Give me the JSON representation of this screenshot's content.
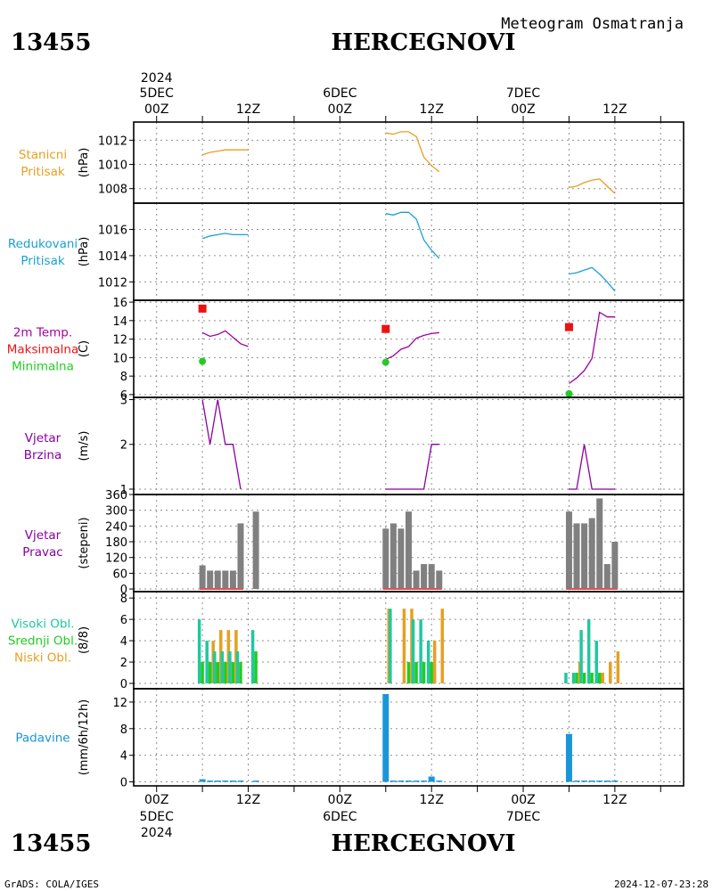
{
  "header": {
    "station_id": "13455",
    "station_name": "HERCEGNOVI",
    "product": "Meteogram Osmatranja"
  },
  "footer": {
    "station_id": "13455",
    "station_name": "HERCEGNOVI",
    "credit": "GrADS: COLA/IGES",
    "timestamp": "2024-12-07-23:28"
  },
  "time_axis": {
    "year": "2024",
    "major": [
      {
        "label": "00Z",
        "day": "5DEC",
        "h": 0
      },
      {
        "label": "12Z",
        "day": "",
        "h": 12
      },
      {
        "label": "00Z",
        "day": "6DEC",
        "h": 24
      },
      {
        "label": "12Z",
        "day": "",
        "h": 36
      },
      {
        "label": "00Z",
        "day": "7DEC",
        "h": 48
      },
      {
        "label": "12Z",
        "day": "",
        "h": 60
      }
    ],
    "range_h": [
      -3,
      69
    ]
  },
  "colors": {
    "station_pressure": "#e6a020",
    "reduced_pressure": "#1aa0d0",
    "temp": "#a000a0",
    "tmax": "#ee1111",
    "tmin": "#22cc22",
    "wind": "#8a00a0",
    "wind_dir_bar": "#808080",
    "wind_dir_base": "#e05050",
    "cloud_high": "#20c8a0",
    "cloud_mid": "#22cc22",
    "cloud_low": "#e6a020",
    "precip": "#1a96d8",
    "grid": "#909090",
    "frame": "#000000"
  },
  "panels": [
    {
      "key": "p1",
      "labels": [
        "Stanicni",
        "Pritisak"
      ],
      "label_colors": [
        "#e6a020",
        "#e6a020"
      ],
      "unit": "(hPa)"
    },
    {
      "key": "p2",
      "labels": [
        "Redukovani",
        "Pritisak"
      ],
      "label_colors": [
        "#1aa0d0",
        "#1aa0d0"
      ],
      "unit": "(hPa)"
    },
    {
      "key": "p3",
      "labels": [
        "2m Temp.",
        "Maksimalna",
        "Minimalna"
      ],
      "label_colors": [
        "#a000a0",
        "#ee1111",
        "#22cc22"
      ],
      "unit": "(C)"
    },
    {
      "key": "p4",
      "labels": [
        "Vjetar",
        "Brzina"
      ],
      "label_colors": [
        "#8a00a0",
        "#8a00a0"
      ],
      "unit": "(m/s)"
    },
    {
      "key": "p5",
      "labels": [
        "Vjetar",
        "Pravac"
      ],
      "label_colors": [
        "#8a00a0",
        "#8a00a0"
      ],
      "unit": "(stepeni)"
    },
    {
      "key": "p6",
      "labels": [
        "Visoki Obl.",
        "Srednji Obl.",
        "Niski Obl."
      ],
      "label_colors": [
        "#20c8a0",
        "#22cc22",
        "#e6a020"
      ],
      "unit": "(8/8)"
    },
    {
      "key": "p7",
      "labels": [
        "Padavine"
      ],
      "label_colors": [
        "#1a96d8"
      ],
      "unit": "(mm/6h/12h)"
    }
  ],
  "chart_data": [
    {
      "type": "line",
      "title": "Stanicni Pritisak",
      "ylabel": "(hPa)",
      "ylim": [
        1006.8,
        1013.5
      ],
      "yticks": [
        1008,
        1010,
        1012
      ],
      "series": [
        {
          "name": "Stanicni Pritisak",
          "x": [
            6,
            7,
            8,
            9,
            10,
            11,
            12
          ],
          "y": [
            1010.8,
            1011.0,
            1011.1,
            1011.2,
            1011.2,
            1011.2,
            1011.2
          ]
        },
        {
          "name": "Stanicni Pritisak",
          "x": [
            30,
            31,
            32,
            33,
            34,
            35,
            36,
            37
          ],
          "y": [
            1012.6,
            1012.5,
            1012.7,
            1012.7,
            1012.3,
            1010.6,
            1009.9,
            1009.4
          ]
        },
        {
          "name": "Stanicni Pritisak",
          "x": [
            54,
            55,
            56,
            57,
            58,
            59,
            60
          ],
          "y": [
            1008.1,
            1008.2,
            1008.5,
            1008.7,
            1008.8,
            1008.2,
            1007.6
          ]
        }
      ]
    },
    {
      "type": "line",
      "title": "Redukovani Pritisak",
      "ylabel": "(hPa)",
      "ylim": [
        1010.6,
        1018.0
      ],
      "yticks": [
        1012,
        1014,
        1016
      ],
      "series": [
        {
          "name": "Redukovani Pritisak",
          "x": [
            6,
            7,
            8,
            9,
            10,
            11,
            12
          ],
          "y": [
            1015.3,
            1015.5,
            1015.6,
            1015.7,
            1015.6,
            1015.6,
            1015.6
          ]
        },
        {
          "name": "Redukovani Pritisak",
          "x": [
            30,
            31,
            32,
            33,
            34,
            35,
            36,
            37
          ],
          "y": [
            1017.2,
            1017.1,
            1017.3,
            1017.3,
            1016.8,
            1015.2,
            1014.4,
            1013.8
          ]
        },
        {
          "name": "Redukovani Pritisak",
          "x": [
            54,
            55,
            56,
            57,
            58,
            59,
            60
          ],
          "y": [
            1012.6,
            1012.7,
            1012.9,
            1013.1,
            1012.6,
            1012.0,
            1011.3
          ]
        }
      ]
    },
    {
      "type": "line",
      "title": "2m Temp. Maksimalna Minimalna",
      "ylabel": "(C)",
      "ylim": [
        5.7,
        16.2
      ],
      "yticks": [
        6,
        8,
        10,
        12,
        14,
        16
      ],
      "series": [
        {
          "name": "2m Temp.",
          "x": [
            6,
            7,
            8,
            9,
            10,
            11,
            12
          ],
          "y": [
            12.7,
            12.3,
            12.5,
            12.9,
            12.2,
            11.5,
            11.2
          ]
        },
        {
          "name": "2m Temp.",
          "x": [
            30,
            31,
            32,
            33,
            34,
            35,
            36,
            37
          ],
          "y": [
            9.8,
            10.2,
            10.9,
            11.2,
            12.1,
            12.4,
            12.6,
            12.7
          ]
        },
        {
          "name": "2m Temp.",
          "x": [
            54,
            55,
            56,
            57,
            58,
            59,
            60
          ],
          "y": [
            7.2,
            7.8,
            8.6,
            9.9,
            14.9,
            14.4,
            14.4
          ]
        }
      ],
      "tmax": {
        "x": [
          6,
          30,
          54
        ],
        "y": [
          15.3,
          13.1,
          13.3
        ]
      },
      "tmin": {
        "x": [
          6,
          30,
          54
        ],
        "y": [
          9.6,
          9.5,
          6.1
        ]
      }
    },
    {
      "type": "line",
      "title": "Vjetar Brzina",
      "ylabel": "(m/s)",
      "ylim": [
        0.88,
        3.05
      ],
      "yticks": [
        1,
        2,
        3
      ],
      "series": [
        {
          "name": "Vjetar Brzina",
          "x": [
            6,
            7,
            8,
            9,
            10,
            11
          ],
          "y": [
            3,
            2,
            3,
            2,
            2,
            1
          ]
        },
        {
          "name": "Vjetar Brzina",
          "x": [
            30,
            35,
            36,
            37
          ],
          "y": [
            1,
            1,
            2,
            2
          ]
        },
        {
          "name": "Vjetar Brzina",
          "x": [
            54,
            55,
            56,
            57,
            60
          ],
          "y": [
            1,
            1,
            2,
            1,
            1
          ]
        }
      ]
    },
    {
      "type": "bar",
      "title": "Vjetar Pravac",
      "ylabel": "(stepeni)",
      "ylim": [
        -10,
        360
      ],
      "yticks": [
        0,
        60,
        120,
        180,
        240,
        300,
        360
      ],
      "x": [
        6,
        7,
        8,
        9,
        10,
        11,
        13,
        30,
        31,
        32,
        33,
        34,
        35,
        36,
        37,
        54,
        55,
        56,
        57,
        58,
        59,
        60
      ],
      "values": [
        90,
        70,
        70,
        70,
        70,
        250,
        295,
        230,
        250,
        230,
        295,
        70,
        95,
        95,
        70,
        295,
        250,
        250,
        270,
        345,
        95,
        180
      ]
    },
    {
      "type": "bar",
      "title": "Visoki Obl. Srednji Obl. Niski Obl.",
      "ylabel": "(8/8)",
      "ylim": [
        -0.5,
        8.6
      ],
      "yticks": [
        0,
        2,
        4,
        6,
        8
      ],
      "x": [
        6,
        7,
        8,
        9,
        10,
        11,
        13,
        30,
        31,
        32,
        33,
        34,
        35,
        36,
        37,
        54,
        55,
        56,
        57,
        58,
        59,
        60
      ],
      "series": [
        {
          "name": "Visoki Obl.",
          "values": [
            6,
            4,
            3,
            3,
            3,
            3,
            5,
            0,
            7,
            0,
            0,
            6,
            6,
            4,
            0,
            1,
            1,
            5,
            6,
            4,
            0,
            0
          ]
        },
        {
          "name": "Srednji Obl.",
          "values": [
            2,
            2,
            2,
            2,
            2,
            2,
            3,
            0,
            0,
            0,
            2,
            2,
            2,
            2,
            0,
            0,
            1,
            1,
            1,
            1,
            0,
            0
          ]
        },
        {
          "name": "Niski Obl.",
          "values": [
            0,
            4,
            5,
            5,
            5,
            0,
            0,
            7,
            0,
            7,
            7,
            0,
            0,
            4,
            7,
            0,
            2,
            0,
            0,
            1,
            2,
            3
          ]
        }
      ]
    },
    {
      "type": "bar",
      "title": "Padavine",
      "ylabel": "(mm/6h/12h)",
      "ylim": [
        -0.6,
        14.0
      ],
      "yticks": [
        0,
        4,
        8,
        12
      ],
      "x": [
        6,
        7,
        8,
        9,
        10,
        11,
        13,
        30,
        31,
        32,
        33,
        34,
        35,
        36,
        37,
        54,
        55,
        56,
        57,
        58,
        59,
        60
      ],
      "values": [
        0.4,
        0.2,
        0.2,
        0.2,
        0.2,
        0.2,
        0.2,
        13.2,
        0.2,
        0.2,
        0.2,
        0.2,
        0.2,
        0.8,
        0.2,
        7.2,
        0.2,
        0.2,
        0.2,
        0.2,
        0.2,
        0.2
      ]
    }
  ]
}
